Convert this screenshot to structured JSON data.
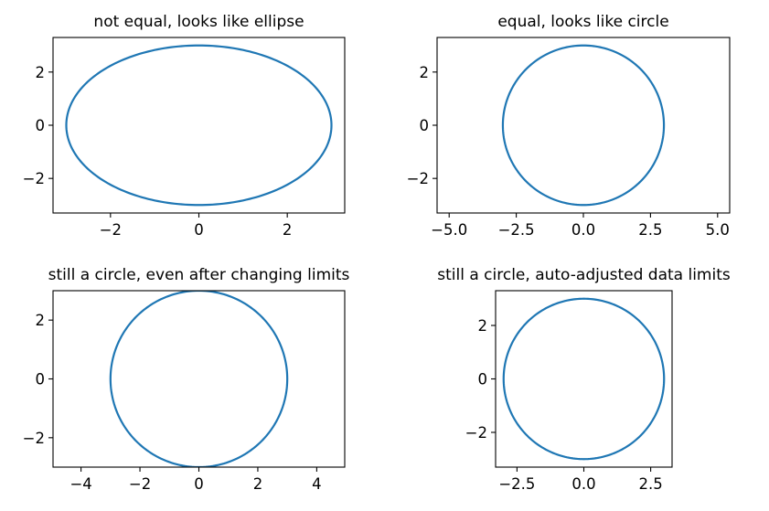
{
  "figure": {
    "background": "#ffffff",
    "line_color": "#1f77b4"
  },
  "chart_data": [
    {
      "type": "line",
      "title": "not equal, looks like ellipse",
      "xlabel": "",
      "ylabel": "",
      "xlim": [
        -3.3,
        3.3
      ],
      "ylim": [
        -3.3,
        3.3
      ],
      "xticks": [
        -2,
        0,
        2
      ],
      "xtick_labels": [
        "−2",
        "0",
        "2"
      ],
      "yticks": [
        -2,
        0,
        2
      ],
      "ytick_labels": [
        "−2",
        "0",
        "2"
      ],
      "grid": false,
      "aspect": "auto",
      "series": [
        {
          "curve": "circle",
          "center": [
            0,
            0
          ],
          "radius": 3
        }
      ]
    },
    {
      "type": "line",
      "title": "equal, looks like circle",
      "xlabel": "",
      "ylabel": "",
      "xlim": [
        -5.45,
        5.45
      ],
      "ylim": [
        -3.3,
        3.3
      ],
      "xticks": [
        -5.0,
        -2.5,
        0.0,
        2.5,
        5.0
      ],
      "xtick_labels": [
        "−5.0",
        "−2.5",
        "0.0",
        "2.5",
        "5.0"
      ],
      "yticks": [
        -2,
        0,
        2
      ],
      "ytick_labels": [
        "−2",
        "0",
        "2"
      ],
      "grid": false,
      "aspect": "equal",
      "series": [
        {
          "curve": "circle",
          "center": [
            0,
            0
          ],
          "radius": 3
        }
      ]
    },
    {
      "type": "line",
      "title": "still a circle, even after changing limits",
      "xlabel": "",
      "ylabel": "",
      "xlim": [
        -4.95,
        4.95
      ],
      "ylim": [
        -3,
        3
      ],
      "xticks": [
        -4,
        -2,
        0,
        2,
        4
      ],
      "xtick_labels": [
        "−4",
        "−2",
        "0",
        "2",
        "4"
      ],
      "yticks": [
        -2,
        0,
        2
      ],
      "ytick_labels": [
        "−2",
        "0",
        "2"
      ],
      "grid": false,
      "aspect": "equal",
      "series": [
        {
          "curve": "circle",
          "center": [
            0,
            0
          ],
          "radius": 3
        }
      ]
    },
    {
      "type": "line",
      "title": "still a circle, auto-adjusted data limits",
      "xlabel": "",
      "ylabel": "",
      "xlim": [
        -3.3,
        3.3
      ],
      "ylim": [
        -3.3,
        3.3
      ],
      "xticks": [
        -2.5,
        0.0,
        2.5
      ],
      "xtick_labels": [
        "−2.5",
        "0.0",
        "2.5"
      ],
      "yticks": [
        -2,
        0,
        2
      ],
      "ytick_labels": [
        "−2",
        "0",
        "2"
      ],
      "grid": false,
      "aspect": "equal",
      "series": [
        {
          "curve": "circle",
          "center": [
            0,
            0
          ],
          "radius": 3
        }
      ]
    }
  ]
}
